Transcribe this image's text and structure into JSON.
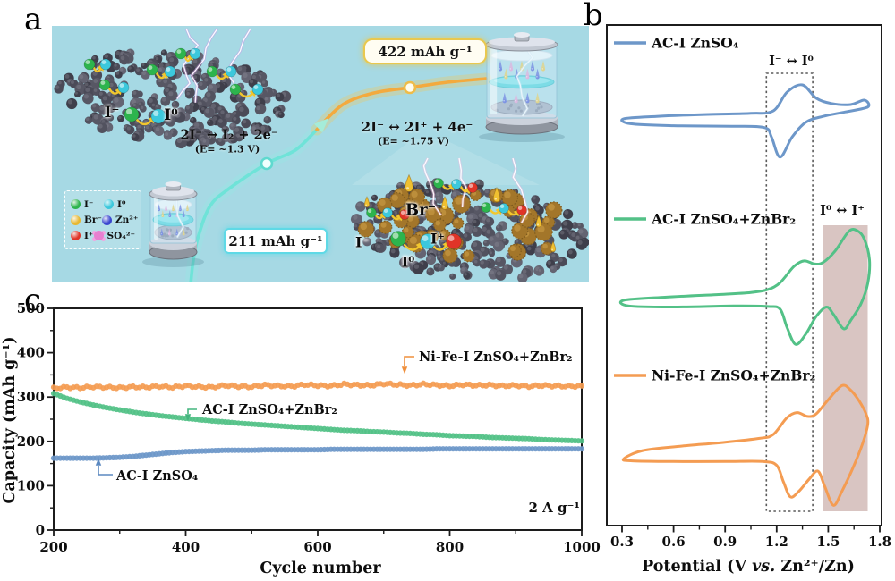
{
  "panels": {
    "a_label": "a",
    "b_label": "b",
    "c_label": "c"
  },
  "panel_a": {
    "capacity_high": "422 mAh g⁻¹",
    "capacity_low": "211 mAh g⁻¹",
    "reaction_left_eq": "2I⁻ ↔ I₂ + 2e⁻",
    "reaction_left_E": "(E= ~1.3 V)",
    "reaction_right_eq": "2I⁻ ↔ 2I⁺ + 4e⁻",
    "reaction_right_E": "(E= ~1.75 V)",
    "flake1_iodide": "I⁻",
    "flake1_iodine": "I⁰",
    "flake2_bromide": "Br⁻",
    "flake2_iodide": "I⁻",
    "flake2_iodine": "I⁰",
    "flake2_iodonium": "I⁺",
    "legend_items": [
      {
        "label": "I⁻",
        "color": "#2db44d",
        "type": "sphere"
      },
      {
        "label": "I⁰",
        "color": "#3cc8dc",
        "type": "sphere"
      },
      {
        "label": "Br⁻",
        "color": "#e7b832",
        "type": "sphere"
      },
      {
        "label": "Zn²⁺",
        "color": "#3a46cf",
        "type": "sphere"
      },
      {
        "label": "I⁺",
        "color": "#e03428",
        "type": "sphere"
      },
      {
        "label": "SO₄²⁻",
        "color": "#e87fd0",
        "type": "cluster"
      }
    ]
  },
  "chart_data": [
    {
      "type": "line",
      "subtype": "cyclic-voltammetry",
      "panel": "b",
      "xlabel_pre": "Potential (V ",
      "xlabel_vs": "vs.",
      "xlabel_post": " Zn²⁺/Zn)",
      "x_range": [
        0.3,
        1.8
      ],
      "x_ticks": [
        0.3,
        0.6,
        0.9,
        1.2,
        1.5,
        1.8
      ],
      "y_axis": "current (a.u., axis unlabeled)",
      "regions": [
        {
          "label": "I⁻ ↔ I⁰",
          "style": "dotted-box",
          "x_range": [
            1.14,
            1.41
          ],
          "label_color": "#3d3d3d"
        },
        {
          "label": "I⁰ ↔ I⁺",
          "style": "shaded",
          "x_range": [
            1.47,
            1.73
          ],
          "fill": "#d9c5c2",
          "label_color": "#8b4a40"
        }
      ],
      "series": [
        {
          "name": "AC-I  ZnSO₄",
          "color": "#6d97c9",
          "loop": [
            [
              0.31,
              0.02
            ],
            [
              0.5,
              0.07
            ],
            [
              0.8,
              0.11
            ],
            [
              1.05,
              0.13
            ],
            [
              1.18,
              0.18
            ],
            [
              1.26,
              0.56
            ],
            [
              1.35,
              0.71
            ],
            [
              1.43,
              0.44
            ],
            [
              1.52,
              0.33
            ],
            [
              1.63,
              0.31
            ],
            [
              1.71,
              0.4
            ],
            [
              1.73,
              0.26
            ],
            [
              1.6,
              0.16
            ],
            [
              1.47,
              0.07
            ],
            [
              1.37,
              -0.05
            ],
            [
              1.29,
              -0.35
            ],
            [
              1.22,
              -0.76
            ],
            [
              1.17,
              -0.35
            ],
            [
              1.13,
              -0.16
            ],
            [
              0.95,
              -0.13
            ],
            [
              0.6,
              -0.12
            ],
            [
              0.35,
              -0.08
            ]
          ]
        },
        {
          "name": "AC-I ZnSO₄+ZnBr₂",
          "color": "#53c187",
          "loop": [
            [
              0.31,
              0.07
            ],
            [
              0.55,
              0.13
            ],
            [
              0.85,
              0.18
            ],
            [
              1.05,
              0.22
            ],
            [
              1.15,
              0.28
            ],
            [
              1.22,
              0.41
            ],
            [
              1.3,
              0.72
            ],
            [
              1.36,
              0.83
            ],
            [
              1.42,
              0.77
            ],
            [
              1.47,
              0.8
            ],
            [
              1.54,
              1.02
            ],
            [
              1.62,
              1.4
            ],
            [
              1.67,
              1.41
            ],
            [
              1.71,
              1.25
            ],
            [
              1.74,
              0.85
            ],
            [
              1.73,
              0.4
            ],
            [
              1.69,
              0.0
            ],
            [
              1.63,
              -0.32
            ],
            [
              1.59,
              -0.48
            ],
            [
              1.53,
              -0.2
            ],
            [
              1.49,
              -0.06
            ],
            [
              1.43,
              -0.24
            ],
            [
              1.37,
              -0.58
            ],
            [
              1.31,
              -0.78
            ],
            [
              1.26,
              -0.45
            ],
            [
              1.22,
              -0.1
            ],
            [
              1.15,
              -0.05
            ],
            [
              0.95,
              -0.04
            ],
            [
              0.6,
              -0.06
            ],
            [
              0.34,
              -0.04
            ]
          ]
        },
        {
          "name": "Ni-Fe-I  ZnSO₄+ZnBr₂",
          "color": "#f49c52",
          "loop": [
            [
              0.31,
              -0.02
            ],
            [
              0.42,
              0.11
            ],
            [
              0.65,
              0.18
            ],
            [
              0.9,
              0.24
            ],
            [
              1.1,
              0.3
            ],
            [
              1.18,
              0.36
            ],
            [
              1.26,
              0.62
            ],
            [
              1.32,
              0.7
            ],
            [
              1.38,
              0.64
            ],
            [
              1.43,
              0.68
            ],
            [
              1.5,
              0.9
            ],
            [
              1.58,
              1.12
            ],
            [
              1.63,
              1.05
            ],
            [
              1.68,
              0.88
            ],
            [
              1.72,
              0.68
            ],
            [
              1.73,
              0.52
            ],
            [
              1.7,
              0.22
            ],
            [
              1.65,
              -0.12
            ],
            [
              1.58,
              -0.52
            ],
            [
              1.53,
              -0.74
            ],
            [
              1.48,
              -0.45
            ],
            [
              1.44,
              -0.21
            ],
            [
              1.39,
              -0.33
            ],
            [
              1.33,
              -0.52
            ],
            [
              1.28,
              -0.61
            ],
            [
              1.24,
              -0.38
            ],
            [
              1.2,
              -0.12
            ],
            [
              1.12,
              -0.06
            ],
            [
              0.9,
              -0.06
            ],
            [
              0.6,
              -0.06
            ],
            [
              0.36,
              -0.05
            ]
          ]
        }
      ]
    },
    {
      "type": "scatter",
      "panel": "c",
      "xlabel": "Cycle number",
      "ylabel": "Capacity (mAh g⁻¹)",
      "x_range": [
        200,
        1000
      ],
      "y_range": [
        0,
        500
      ],
      "x_ticks": [
        200,
        400,
        600,
        800,
        1000
      ],
      "y_ticks": [
        0,
        100,
        200,
        300,
        400,
        500
      ],
      "x_minor_step": 100,
      "y_minor_step": 50,
      "rate_annotation": "2 A g⁻¹",
      "x_points": {
        "start": 200,
        "step": 20,
        "count": 41
      },
      "series": [
        {
          "name": "Ni-Fe-I ZnSO₄+ZnBr₂",
          "color": "#f49c52",
          "label_color": "#ef8f3c",
          "values": [
            320,
            322,
            321,
            323,
            322,
            321,
            323,
            322,
            324,
            322,
            325,
            323,
            322,
            326,
            324,
            323,
            327,
            325,
            324,
            328,
            326,
            325,
            329,
            327,
            326,
            330,
            328,
            326,
            329,
            327,
            325,
            328,
            326,
            327,
            325,
            326,
            324,
            326,
            325,
            324,
            325
          ]
        },
        {
          "name": "AC-I ZnSO₄+ZnBr₂",
          "color": "#53c187",
          "label_color": "#44b57e",
          "values": [
            308,
            297,
            289,
            282,
            276,
            271,
            266,
            262,
            258,
            255,
            252,
            249,
            246,
            244,
            241,
            239,
            237,
            235,
            233,
            231,
            229,
            227,
            225,
            224,
            222,
            221,
            219,
            218,
            216,
            215,
            213,
            212,
            211,
            209,
            208,
            207,
            206,
            204,
            203,
            202,
            201
          ]
        },
        {
          "name": "AC-I ZnSO₄",
          "color": "#6d97c9",
          "label_color": "#5b88c0",
          "values": [
            162,
            162,
            162,
            162,
            163,
            164,
            166,
            169,
            172,
            175,
            177,
            178,
            179,
            180,
            180,
            180,
            181,
            181,
            181,
            181,
            181,
            182,
            182,
            182,
            182,
            182,
            182,
            182,
            182,
            183,
            183,
            183,
            183,
            183,
            183,
            183,
            183,
            183,
            183,
            183,
            183
          ]
        }
      ]
    }
  ]
}
